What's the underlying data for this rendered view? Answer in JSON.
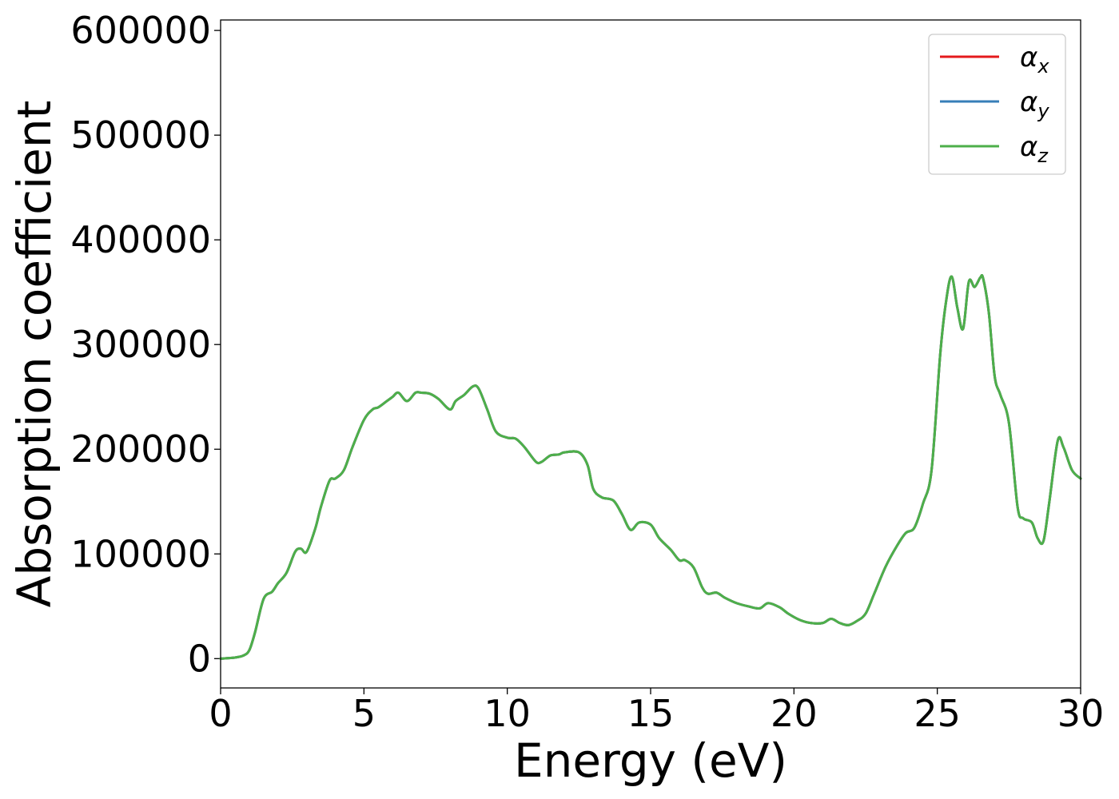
{
  "chart_data": {
    "type": "line",
    "xlabel": "Energy (eV)",
    "ylabel": "Absorption coefficient",
    "xlim": [
      0,
      30
    ],
    "ylim": [
      -28000,
      610000
    ],
    "x_ticks": [
      0,
      5,
      10,
      15,
      20,
      25,
      30
    ],
    "x_tick_labels": [
      "0",
      "5",
      "10",
      "15",
      "20",
      "25",
      "30"
    ],
    "y_ticks": [
      0,
      100000,
      200000,
      300000,
      400000,
      500000,
      600000
    ],
    "y_tick_labels": [
      "0",
      "100000",
      "200000",
      "300000",
      "400000",
      "500000",
      "600000"
    ],
    "grid": false,
    "legend_position": "top-right",
    "x": [
      0,
      0.5,
      0.8,
      1.0,
      1.2,
      1.5,
      1.8,
      2.0,
      2.3,
      2.6,
      2.8,
      3.0,
      3.3,
      3.5,
      3.8,
      4.0,
      4.3,
      4.6,
      5.0,
      5.3,
      5.5,
      5.8,
      6.0,
      6.2,
      6.5,
      6.8,
      7.0,
      7.3,
      7.6,
      8.0,
      8.2,
      8.5,
      8.8,
      9.0,
      9.3,
      9.6,
      10.0,
      10.3,
      10.6,
      11.0,
      11.2,
      11.5,
      11.8,
      12.0,
      12.5,
      12.8,
      13.0,
      13.3,
      13.7,
      14.0,
      14.3,
      14.6,
      15.0,
      15.3,
      15.7,
      16.0,
      16.2,
      16.5,
      16.8,
      17.0,
      17.3,
      17.6,
      18.0,
      18.4,
      18.8,
      19.1,
      19.5,
      19.8,
      20.2,
      20.6,
      21.0,
      21.3,
      21.6,
      21.9,
      22.2,
      22.5,
      22.8,
      23.2,
      23.6,
      23.9,
      24.2,
      24.5,
      24.8,
      25.1,
      25.3,
      25.5,
      25.7,
      25.9,
      26.1,
      26.3,
      26.5,
      26.6,
      26.8,
      27.0,
      27.2,
      27.5,
      27.8,
      28.0,
      28.3,
      28.5,
      28.7,
      28.9,
      29.2,
      29.4,
      29.7,
      30.0
    ],
    "series": [
      {
        "name": "αx",
        "color": "#e41a1c",
        "values": [
          0,
          1000,
          3000,
          8000,
          25000,
          57000,
          64000,
          72000,
          82000,
          102000,
          105000,
          102000,
          124000,
          145000,
          170000,
          172000,
          180000,
          202000,
          228000,
          238000,
          240000,
          246000,
          250000,
          254000,
          246000,
          254000,
          254000,
          253000,
          248000,
          238000,
          246000,
          252000,
          260000,
          258000,
          238000,
          217000,
          211000,
          210000,
          202000,
          188000,
          188000,
          194000,
          195000,
          197000,
          197000,
          185000,
          162000,
          154000,
          151000,
          138000,
          123000,
          130000,
          128000,
          115000,
          104000,
          94000,
          94000,
          87000,
          68000,
          62000,
          63000,
          58000,
          53000,
          50000,
          48000,
          53000,
          49000,
          43000,
          37000,
          34000,
          34000,
          38000,
          34000,
          32000,
          36000,
          43000,
          62000,
          88000,
          108000,
          120000,
          125000,
          148000,
          180000,
          290000,
          340000,
          365000,
          335000,
          315000,
          360000,
          355000,
          364000,
          363000,
          330000,
          270000,
          252000,
          225000,
          145000,
          134000,
          130000,
          115000,
          112000,
          148000,
          208000,
          202000,
          180000,
          172000
        ]
      },
      {
        "name": "αy",
        "color": "#377eb8",
        "values": [
          0,
          1000,
          3000,
          8000,
          25000,
          57000,
          64000,
          72000,
          82000,
          102000,
          105000,
          102000,
          124000,
          145000,
          170000,
          172000,
          180000,
          202000,
          228000,
          238000,
          240000,
          246000,
          250000,
          254000,
          246000,
          254000,
          254000,
          253000,
          248000,
          238000,
          246000,
          252000,
          260000,
          258000,
          238000,
          217000,
          211000,
          210000,
          202000,
          188000,
          188000,
          194000,
          195000,
          197000,
          197000,
          185000,
          162000,
          154000,
          151000,
          138000,
          123000,
          130000,
          128000,
          115000,
          104000,
          94000,
          94000,
          87000,
          68000,
          62000,
          63000,
          58000,
          53000,
          50000,
          48000,
          53000,
          49000,
          43000,
          37000,
          34000,
          34000,
          38000,
          34000,
          32000,
          36000,
          43000,
          62000,
          88000,
          108000,
          120000,
          125000,
          148000,
          180000,
          290000,
          340000,
          365000,
          335000,
          315000,
          360000,
          355000,
          364000,
          363000,
          330000,
          270000,
          252000,
          225000,
          145000,
          134000,
          130000,
          115000,
          112000,
          148000,
          208000,
          202000,
          180000,
          172000
        ]
      },
      {
        "name": "αz",
        "color": "#4daf4a",
        "values": [
          0,
          1000,
          3000,
          8000,
          25000,
          57000,
          64000,
          72000,
          82000,
          102000,
          105000,
          102000,
          124000,
          145000,
          170000,
          172000,
          180000,
          202000,
          228000,
          238000,
          240000,
          246000,
          250000,
          254000,
          246000,
          254000,
          254000,
          253000,
          248000,
          238000,
          246000,
          252000,
          260000,
          258000,
          238000,
          217000,
          211000,
          210000,
          202000,
          188000,
          188000,
          194000,
          195000,
          197000,
          197000,
          185000,
          162000,
          154000,
          151000,
          138000,
          123000,
          130000,
          128000,
          115000,
          104000,
          94000,
          94000,
          87000,
          68000,
          62000,
          63000,
          58000,
          53000,
          50000,
          48000,
          53000,
          49000,
          43000,
          37000,
          34000,
          34000,
          38000,
          34000,
          32000,
          36000,
          43000,
          62000,
          88000,
          108000,
          120000,
          125000,
          148000,
          180000,
          290000,
          340000,
          365000,
          335000,
          315000,
          360000,
          355000,
          364000,
          363000,
          330000,
          270000,
          252000,
          225000,
          145000,
          134000,
          130000,
          115000,
          112000,
          148000,
          208000,
          202000,
          180000,
          172000
        ]
      }
    ],
    "legend": [
      {
        "symbol": "α",
        "sub": "x",
        "color": "#e41a1c"
      },
      {
        "symbol": "α",
        "sub": "y",
        "color": "#377eb8"
      },
      {
        "symbol": "α",
        "sub": "z",
        "color": "#4daf4a"
      }
    ]
  }
}
